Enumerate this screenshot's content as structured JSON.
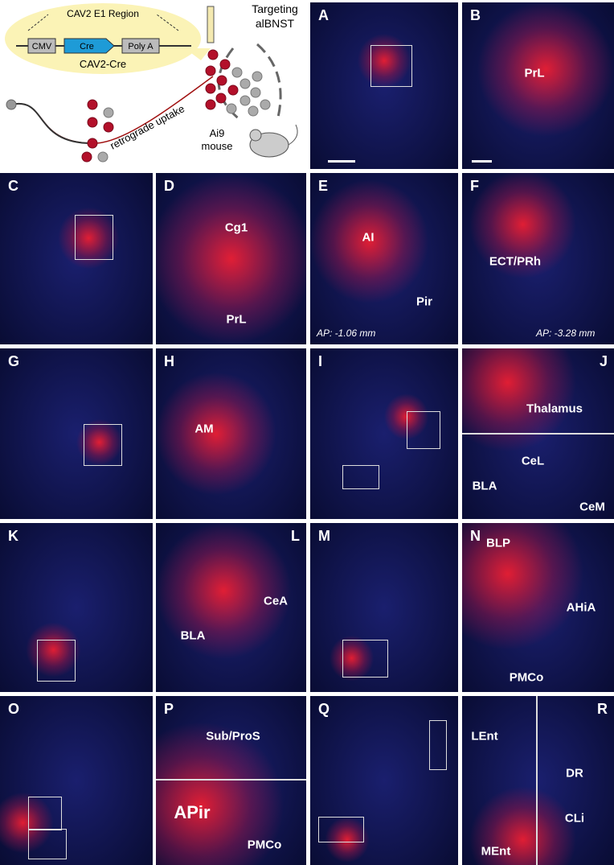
{
  "schematic": {
    "region": "CAV2 E1 Region",
    "promoter": "CMV",
    "gene": "Cre",
    "polya": "Poly A",
    "vector": "CAV2-Cre",
    "targeting": "Targeting",
    "target": "alBNST",
    "uptake": "retrograde uptake",
    "strain": "Ai9",
    "animal": "mouse"
  },
  "panels": [
    {
      "letter": "A",
      "labels": []
    },
    {
      "letter": "B",
      "labels": [
        "PrL"
      ]
    },
    {
      "letter": "C",
      "labels": []
    },
    {
      "letter": "D",
      "labels": [
        "Cg1",
        "PrL"
      ]
    },
    {
      "letter": "E",
      "labels": [
        "AI",
        "Pir",
        "AP: -1.06 mm"
      ]
    },
    {
      "letter": "F",
      "labels": [
        "ECT/PRh",
        "AP: -3.28 mm"
      ]
    },
    {
      "letter": "G",
      "labels": []
    },
    {
      "letter": "H",
      "labels": [
        "AM"
      ]
    },
    {
      "letter": "I",
      "labels": []
    },
    {
      "letter": "J",
      "labels": [
        "Thalamus",
        "BLA",
        "CeL",
        "CeM"
      ]
    },
    {
      "letter": "K",
      "labels": []
    },
    {
      "letter": "L",
      "labels": [
        "BLA",
        "CeA"
      ]
    },
    {
      "letter": "M",
      "labels": []
    },
    {
      "letter": "N",
      "labels": [
        "BLP",
        "AHiA",
        "PMCo"
      ]
    },
    {
      "letter": "O",
      "labels": []
    },
    {
      "letter": "P",
      "labels": [
        "Sub/ProS",
        "APir",
        "PMCo"
      ]
    },
    {
      "letter": "Q",
      "labels": []
    },
    {
      "letter": "R",
      "labels": [
        "LEnt",
        "MEnt",
        "DR",
        "CLi"
      ]
    }
  ]
}
